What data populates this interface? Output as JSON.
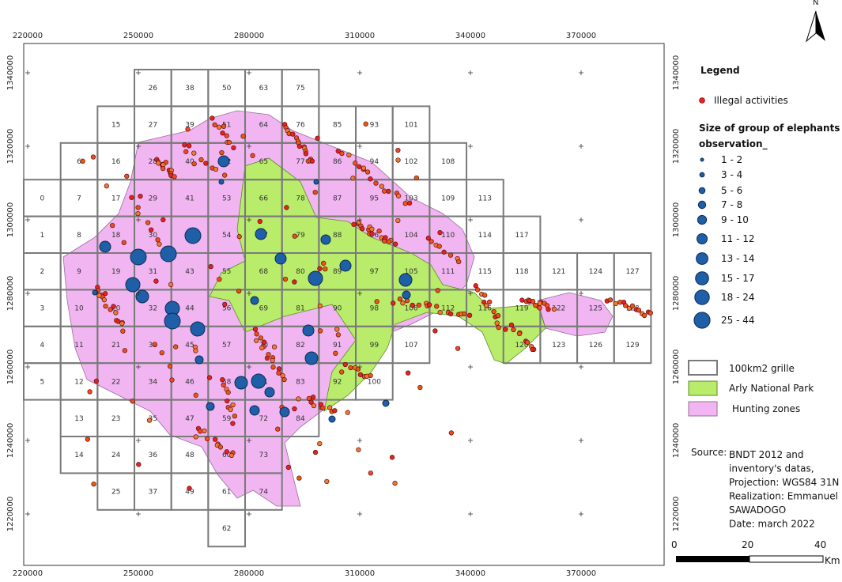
{
  "x_labels": [
    "220000",
    "250000",
    "280000",
    "310000",
    "340000",
    "370000"
  ],
  "y_labels": [
    "1340000",
    "1320000",
    "1300000",
    "1280000",
    "1260000",
    "1240000",
    "1220000"
  ],
  "grid": [
    [
      null,
      null,
      null,
      "26",
      "38",
      "50",
      "63",
      "75",
      null,
      null,
      null,
      null,
      null,
      null,
      null,
      null,
      null
    ],
    [
      null,
      null,
      "15",
      "27",
      "39",
      "51",
      "64",
      "76",
      "85",
      "93",
      "101",
      null,
      null,
      null,
      null,
      null,
      null
    ],
    [
      null,
      "6",
      "16",
      "28",
      "40",
      "52",
      "65",
      "77",
      "86",
      "94",
      "102",
      "108",
      null,
      null,
      null,
      null,
      null
    ],
    [
      "0",
      "7",
      "17",
      "29",
      "41",
      "53",
      "66",
      "78",
      "87",
      "95",
      "103",
      "109",
      "113",
      null,
      null,
      null,
      null
    ],
    [
      "1",
      "8",
      "18",
      "30",
      "42",
      "54",
      "67",
      "79",
      "88",
      "96",
      "104",
      "110",
      "114",
      "117",
      null,
      null,
      null
    ],
    [
      "2",
      "9",
      "19",
      "31",
      "43",
      "55",
      "68",
      "80",
      "89",
      "97",
      "105",
      "111",
      "115",
      "118",
      "121",
      "124",
      "127"
    ],
    [
      "3",
      "10",
      "20",
      "32",
      "44",
      "56",
      "69",
      "81",
      "90",
      "98",
      "106",
      "112",
      "116",
      "119",
      "122",
      "125",
      "128"
    ],
    [
      "4",
      "11",
      "21",
      "33",
      "45",
      "57",
      "70",
      "82",
      "91",
      "99",
      "107",
      null,
      null,
      "120",
      "123",
      "126",
      "129"
    ],
    [
      "5",
      "12",
      "22",
      "34",
      "46",
      "58",
      "71",
      "83",
      "92",
      "100",
      null,
      null,
      null,
      null,
      null,
      null,
      null
    ],
    [
      null,
      "13",
      "23",
      "35",
      "47",
      "59",
      "72",
      "84",
      null,
      null,
      null,
      null,
      null,
      null,
      null,
      null,
      null
    ],
    [
      null,
      "14",
      "24",
      "36",
      "48",
      "60",
      "73",
      null,
      null,
      null,
      null,
      null,
      null,
      null,
      null,
      null,
      null
    ],
    [
      null,
      null,
      "25",
      "37",
      "49",
      "61",
      "74",
      null,
      null,
      null,
      null,
      null,
      null,
      null,
      null,
      null,
      null
    ],
    [
      null,
      null,
      null,
      null,
      null,
      "62",
      null,
      null,
      null,
      null,
      null,
      null,
      null,
      null,
      null,
      null,
      null
    ]
  ],
  "north": "N",
  "legend": {
    "title": "Legend",
    "illegal": "Illegal activities",
    "size_title": [
      "Size of group of elephants",
      "observation_"
    ],
    "classes": [
      "1 - 2",
      "3 - 4",
      "5 - 6",
      "7 - 8",
      "9 - 10",
      "11 - 12",
      "13 - 14",
      "15 - 17",
      "18 - 24",
      "25 - 44"
    ],
    "grid": "100km2 grille",
    "park": "Arly National Park",
    "hunting": "Hunting zones"
  },
  "source": {
    "label": "Source:",
    "lines": [
      "BNDT 2012  and",
      "inventory's datas,",
      "Projection: WGS84 31N",
      "Realization: Emmanuel",
      "SAWADOGO",
      "Date: march 2022"
    ]
  },
  "scale": [
    "0",
    "20",
    "40",
    "Km"
  ]
}
